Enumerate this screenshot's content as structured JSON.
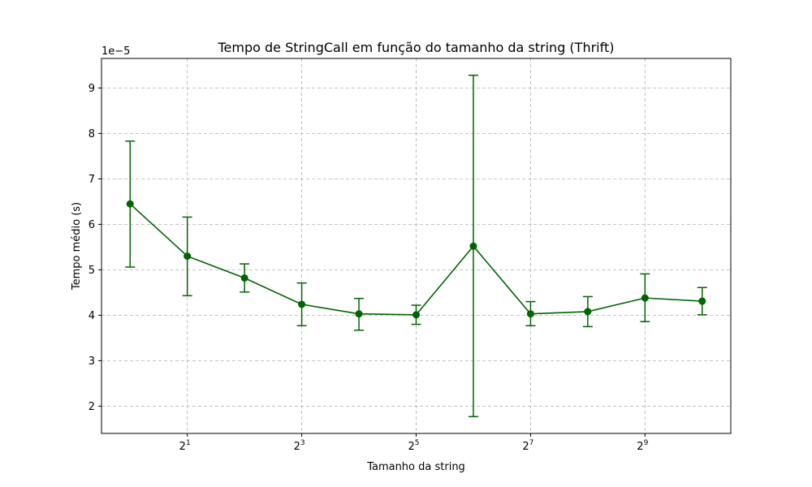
{
  "chart_data": {
    "type": "line",
    "title": "Tempo de StringCall em função do tamanho da string (Thrift)",
    "xlabel": "Tamanho da string",
    "ylabel": "Tempo médio (s)",
    "x_scale": "log2",
    "y_multiplier_label": "1e−5",
    "xlim_exp": [
      -0.5,
      10.5
    ],
    "ylim": [
      1.4,
      9.65
    ],
    "x_ticks": [
      {
        "base": "2",
        "exp": "1",
        "value_exp": 1
      },
      {
        "base": "2",
        "exp": "3",
        "value_exp": 3
      },
      {
        "base": "2",
        "exp": "5",
        "value_exp": 5
      },
      {
        "base": "2",
        "exp": "7",
        "value_exp": 7
      },
      {
        "base": "2",
        "exp": "9",
        "value_exp": 9
      }
    ],
    "y_ticks": [
      "2",
      "3",
      "4",
      "5",
      "6",
      "7",
      "8",
      "9"
    ],
    "grid": true,
    "color": "#006400",
    "series": [
      {
        "x": [
          1,
          2,
          4,
          8,
          16,
          32,
          64,
          128,
          256,
          512,
          1024
        ],
        "y": [
          6.45,
          5.3,
          4.82,
          4.24,
          4.03,
          4.01,
          5.52,
          4.03,
          4.08,
          4.38,
          4.31
        ],
        "y_err_low": [
          5.06,
          4.43,
          4.51,
          3.77,
          3.67,
          3.8,
          1.77,
          3.77,
          3.75,
          3.86,
          4.01
        ],
        "y_err_high": [
          7.83,
          6.16,
          5.13,
          4.71,
          4.37,
          4.22,
          9.28,
          4.3,
          4.41,
          4.91,
          4.61
        ]
      }
    ]
  }
}
